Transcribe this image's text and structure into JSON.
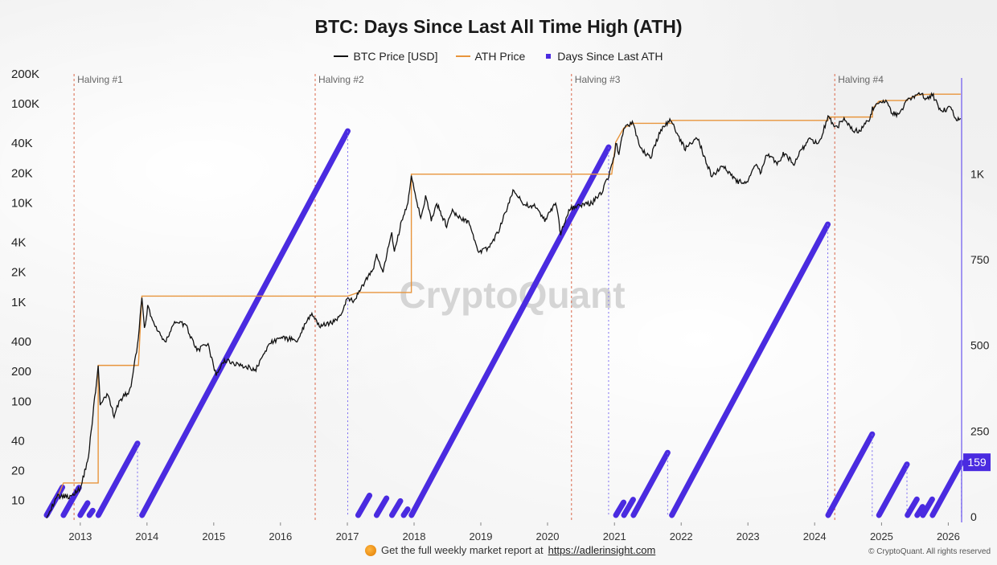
{
  "title": "BTC: Days Since Last All Time High (ATH)",
  "legend": [
    {
      "label": "BTC Price [USD]",
      "color": "#111111",
      "kind": "line"
    },
    {
      "label": "ATH Price",
      "color": "#e8953c",
      "kind": "line"
    },
    {
      "label": "Days Since Last ATH",
      "color": "#4a2be0",
      "kind": "bar"
    }
  ],
  "watermark": "CryptoQuant",
  "footer": {
    "promo_text": "Get the full weekly market report at",
    "promo_link": "https://adlerinsight.com",
    "copyright": "© CryptoQuant. All rights reserved"
  },
  "chart_data": {
    "type": "line",
    "x_axis": {
      "ticks": [
        "2013",
        "2014",
        "2015",
        "2016",
        "2017",
        "2018",
        "2019",
        "2020",
        "2021",
        "2022",
        "2023",
        "2024",
        "2025",
        "2026"
      ],
      "range": [
        "2012-07-01",
        "2026-03-15"
      ]
    },
    "y_left": {
      "scale": "log",
      "unit": "USD",
      "ticks": [
        "10",
        "20",
        "40",
        "100",
        "200",
        "400",
        "1K",
        "2K",
        "4K",
        "10K",
        "20K",
        "40K",
        "100K",
        "200K"
      ],
      "tick_values": [
        10,
        20,
        40,
        100,
        200,
        400,
        1000,
        2000,
        4000,
        10000,
        20000,
        40000,
        100000,
        200000
      ],
      "range": [
        6,
        200000
      ]
    },
    "y_right": {
      "scale": "linear",
      "ticks": [
        "0",
        "250",
        "500",
        "750",
        "1K"
      ],
      "tick_values": [
        0,
        250,
        500,
        750,
        1000
      ],
      "range": [
        0,
        1280
      ]
    },
    "current_value_label": "159",
    "halvings": [
      {
        "label": "Halving #1",
        "date": "2012-11-28"
      },
      {
        "label": "Halving #2",
        "date": "2016-07-09"
      },
      {
        "label": "Halving #3",
        "date": "2020-05-11"
      },
      {
        "label": "Halving #4",
        "date": "2024-04-20"
      }
    ],
    "series": [
      {
        "name": "BTC Price [USD]",
        "color": "#111111",
        "points": [
          [
            "2012-07-01",
            7
          ],
          [
            "2012-09-01",
            11
          ],
          [
            "2012-11-01",
            11
          ],
          [
            "2013-01-01",
            13
          ],
          [
            "2013-02-15",
            28
          ],
          [
            "2013-04-09",
            230
          ],
          [
            "2013-04-20",
            90
          ],
          [
            "2013-06-01",
            120
          ],
          [
            "2013-07-05",
            70
          ],
          [
            "2013-08-01",
            100
          ],
          [
            "2013-10-01",
            130
          ],
          [
            "2013-11-15",
            420
          ],
          [
            "2013-12-04",
            1150
          ],
          [
            "2013-12-18",
            520
          ],
          [
            "2014-01-05",
            900
          ],
          [
            "2014-02-10",
            600
          ],
          [
            "2014-04-10",
            380
          ],
          [
            "2014-06-01",
            640
          ],
          [
            "2014-08-01",
            580
          ],
          [
            "2014-10-01",
            330
          ],
          [
            "2014-12-01",
            370
          ],
          [
            "2015-01-14",
            180
          ],
          [
            "2015-03-01",
            260
          ],
          [
            "2015-06-01",
            230
          ],
          [
            "2015-08-20",
            210
          ],
          [
            "2015-11-05",
            390
          ],
          [
            "2016-01-01",
            430
          ],
          [
            "2016-04-01",
            420
          ],
          [
            "2016-06-16",
            760
          ],
          [
            "2016-08-01",
            570
          ],
          [
            "2016-10-01",
            610
          ],
          [
            "2016-12-01",
            750
          ],
          [
            "2017-01-04",
            1130
          ],
          [
            "2017-02-01",
            1000
          ],
          [
            "2017-03-01",
            1250
          ],
          [
            "2017-05-20",
            2100
          ],
          [
            "2017-06-10",
            2900
          ],
          [
            "2017-07-15",
            1900
          ],
          [
            "2017-08-10",
            3500
          ],
          [
            "2017-09-01",
            4900
          ],
          [
            "2017-09-15",
            3200
          ],
          [
            "2017-10-20",
            6000
          ],
          [
            "2017-11-28",
            10000
          ],
          [
            "2017-12-17",
            19500
          ],
          [
            "2018-02-06",
            6900
          ],
          [
            "2018-03-05",
            11500
          ],
          [
            "2018-04-05",
            6700
          ],
          [
            "2018-05-05",
            9800
          ],
          [
            "2018-06-28",
            5900
          ],
          [
            "2018-07-25",
            8300
          ],
          [
            "2018-09-01",
            7200
          ],
          [
            "2018-10-31",
            6300
          ],
          [
            "2018-12-15",
            3200
          ],
          [
            "2019-02-08",
            3500
          ],
          [
            "2019-04-05",
            5000
          ],
          [
            "2019-06-26",
            13000
          ],
          [
            "2019-09-01",
            9600
          ],
          [
            "2019-10-26",
            9300
          ],
          [
            "2019-12-17",
            6600
          ],
          [
            "2020-02-14",
            10300
          ],
          [
            "2020-03-13",
            4900
          ],
          [
            "2020-05-01",
            8800
          ],
          [
            "2020-07-25",
            9600
          ],
          [
            "2020-09-05",
            10200
          ],
          [
            "2020-10-25",
            13100
          ],
          [
            "2020-12-01",
            19000
          ],
          [
            "2020-12-31",
            29000
          ],
          [
            "2021-01-08",
            41000
          ],
          [
            "2021-01-25",
            31000
          ],
          [
            "2021-02-21",
            57000
          ],
          [
            "2021-04-14",
            63500
          ],
          [
            "2021-05-20",
            37000
          ],
          [
            "2021-06-22",
            31000
          ],
          [
            "2021-07-20",
            29800
          ],
          [
            "2021-09-07",
            52000
          ],
          [
            "2021-10-21",
            66000
          ],
          [
            "2021-11-10",
            68000
          ],
          [
            "2021-12-15",
            47000
          ],
          [
            "2022-01-24",
            35000
          ],
          [
            "2022-03-28",
            47000
          ],
          [
            "2022-05-12",
            28000
          ],
          [
            "2022-06-18",
            18500
          ],
          [
            "2022-08-14",
            24300
          ],
          [
            "2022-09-30",
            19500
          ],
          [
            "2022-11-09",
            16300
          ],
          [
            "2022-12-31",
            16500
          ],
          [
            "2023-02-16",
            24500
          ],
          [
            "2023-03-10",
            20000
          ],
          [
            "2023-04-14",
            30500
          ],
          [
            "2023-06-15",
            25000
          ],
          [
            "2023-07-13",
            31500
          ],
          [
            "2023-09-11",
            25000
          ],
          [
            "2023-10-24",
            34500
          ],
          [
            "2023-12-06",
            44000
          ],
          [
            "2024-01-22",
            39000
          ],
          [
            "2024-03-14",
            73500
          ],
          [
            "2024-05-01",
            57000
          ],
          [
            "2024-06-05",
            71000
          ],
          [
            "2024-08-05",
            54000
          ],
          [
            "2024-09-06",
            53000
          ],
          [
            "2024-10-29",
            72000
          ],
          [
            "2024-11-12",
            89000
          ],
          [
            "2024-12-17",
            106000
          ],
          [
            "2025-01-20",
            108000
          ],
          [
            "2025-02-28",
            80000
          ],
          [
            "2025-04-08",
            76000
          ],
          [
            "2025-05-22",
            111000
          ],
          [
            "2025-07-14",
            122000
          ],
          [
            "2025-08-14",
            124000
          ],
          [
            "2025-09-01",
            108000
          ],
          [
            "2025-10-06",
            125000
          ],
          [
            "2025-11-21",
            84000
          ],
          [
            "2025-12-20",
            88000
          ],
          [
            "2026-01-20",
            92000
          ],
          [
            "2026-02-05",
            72000
          ],
          [
            "2026-02-20",
            68000
          ],
          [
            "2026-03-10",
            71000
          ]
        ]
      },
      {
        "name": "ATH Price",
        "color": "#e8953c",
        "points": [
          [
            "2012-09-01",
            11
          ],
          [
            "2012-10-01",
            15
          ],
          [
            "2013-01-01",
            15
          ],
          [
            "2013-04-09",
            230
          ],
          [
            "2013-11-15",
            230
          ],
          [
            "2013-12-04",
            1150
          ],
          [
            "2017-01-04",
            1150
          ],
          [
            "2017-03-01",
            1250
          ],
          [
            "2017-12-17",
            19500
          ],
          [
            "2020-12-17",
            19500
          ],
          [
            "2021-01-08",
            41000
          ],
          [
            "2021-02-21",
            57000
          ],
          [
            "2021-04-14",
            63500
          ],
          [
            "2021-11-10",
            68000
          ],
          [
            "2024-03-14",
            73500
          ],
          [
            "2024-11-12",
            89000
          ],
          [
            "2024-12-17",
            106000
          ],
          [
            "2025-01-20",
            108000
          ],
          [
            "2025-05-22",
            111000
          ],
          [
            "2025-07-14",
            122000
          ],
          [
            "2025-08-14",
            124000
          ],
          [
            "2025-10-06",
            125000
          ],
          [
            "2026-03-10",
            125000
          ]
        ]
      },
      {
        "name": "Days Since Last ATH",
        "color": "#4a2be0",
        "segments": [
          {
            "start": "2012-07-01",
            "end": "2012-09-25"
          },
          {
            "start": "2012-10-01",
            "end": "2012-12-25"
          },
          {
            "start": "2013-01-01",
            "end": "2013-02-10"
          },
          {
            "start": "2013-02-20",
            "end": "2013-03-10"
          },
          {
            "start": "2013-04-10",
            "end": "2013-11-10"
          },
          {
            "start": "2013-12-05",
            "end": "2017-01-03"
          },
          {
            "start": "2017-03-01",
            "end": "2017-05-02"
          },
          {
            "start": "2017-06-10",
            "end": "2017-08-03"
          },
          {
            "start": "2017-09-02",
            "end": "2017-10-18"
          },
          {
            "start": "2017-11-05",
            "end": "2017-11-27"
          },
          {
            "start": "2017-12-18",
            "end": "2020-11-30"
          },
          {
            "start": "2021-01-09",
            "end": "2021-02-20"
          },
          {
            "start": "2021-02-22",
            "end": "2021-04-13"
          },
          {
            "start": "2021-04-15",
            "end": "2021-10-19"
          },
          {
            "start": "2021-11-11",
            "end": "2024-03-13"
          },
          {
            "start": "2024-03-15",
            "end": "2024-11-11"
          },
          {
            "start": "2024-12-18",
            "end": "2025-05-20"
          },
          {
            "start": "2025-05-23",
            "end": "2025-07-13"
          },
          {
            "start": "2025-07-15",
            "end": "2025-08-13"
          },
          {
            "start": "2025-08-15",
            "end": "2025-10-05"
          },
          {
            "start": "2025-10-07",
            "end": "2026-03-14"
          }
        ]
      }
    ]
  }
}
